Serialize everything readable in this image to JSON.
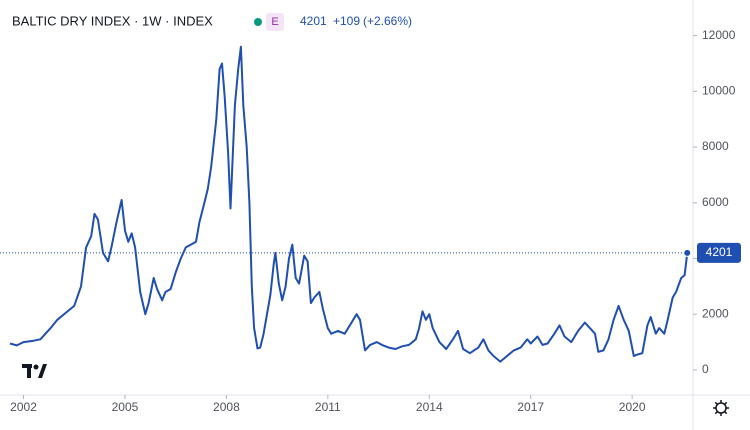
{
  "chart_data": {
    "type": "line",
    "title": "BALTIC DRY INDEX · 1W · INDEX",
    "exchange_badge": "E",
    "last_value": 4201,
    "change": "+109",
    "change_pct": "(+2.66%)",
    "color": "#1f4fb0",
    "x": [
      2001.6,
      2001.8,
      2002.0,
      2002.3,
      2002.5,
      2002.8,
      2003.0,
      2003.3,
      2003.5,
      2003.7,
      2003.85,
      2004.0,
      2004.1,
      2004.2,
      2004.35,
      2004.5,
      2004.6,
      2004.75,
      2004.9,
      2005.0,
      2005.1,
      2005.2,
      2005.3,
      2005.45,
      2005.6,
      2005.7,
      2005.85,
      2005.95,
      2006.1,
      2006.2,
      2006.35,
      2006.5,
      2006.65,
      2006.8,
      2006.95,
      2007.1,
      2007.2,
      2007.35,
      2007.45,
      2007.55,
      2007.7,
      2007.8,
      2007.87,
      2007.95,
      2008.05,
      2008.12,
      2008.25,
      2008.35,
      2008.43,
      2008.5,
      2008.6,
      2008.68,
      2008.75,
      2008.82,
      2008.92,
      2009.0,
      2009.1,
      2009.2,
      2009.3,
      2009.4,
      2009.45,
      2009.55,
      2009.65,
      2009.75,
      2009.85,
      2009.95,
      2010.05,
      2010.15,
      2010.3,
      2010.4,
      2010.5,
      2010.6,
      2010.75,
      2010.85,
      2011.0,
      2011.1,
      2011.3,
      2011.5,
      2011.7,
      2011.85,
      2011.95,
      2012.1,
      2012.25,
      2012.45,
      2012.6,
      2012.8,
      2013.0,
      2013.2,
      2013.4,
      2013.6,
      2013.7,
      2013.8,
      2013.9,
      2014.0,
      2014.1,
      2014.3,
      2014.5,
      2014.7,
      2014.85,
      2015.0,
      2015.2,
      2015.45,
      2015.6,
      2015.75,
      2015.9,
      2016.1,
      2016.3,
      2016.5,
      2016.7,
      2016.9,
      2017.0,
      2017.2,
      2017.35,
      2017.5,
      2017.7,
      2017.85,
      2018.0,
      2018.2,
      2018.4,
      2018.6,
      2018.75,
      2018.9,
      2019.0,
      2019.15,
      2019.3,
      2019.45,
      2019.6,
      2019.75,
      2019.9,
      2020.05,
      2020.15,
      2020.3,
      2020.45,
      2020.55,
      2020.7,
      2020.8,
      2020.95,
      2021.05,
      2021.2,
      2021.3,
      2021.45,
      2021.55,
      2021.63
    ],
    "values": [
      950,
      880,
      1000,
      1050,
      1100,
      1500,
      1800,
      2100,
      2300,
      3000,
      4400,
      4800,
      5600,
      5400,
      4200,
      3900,
      4400,
      5300,
      6100,
      5000,
      4600,
      4900,
      4400,
      2800,
      2000,
      2400,
      3300,
      2900,
      2500,
      2800,
      2900,
      3500,
      4000,
      4400,
      4500,
      4600,
      5300,
      6000,
      6500,
      7300,
      9000,
      10800,
      11000,
      9800,
      7800,
      5800,
      9500,
      10800,
      11600,
      9500,
      8000,
      6000,
      3000,
      1500,
      774,
      800,
      1300,
      2000,
      2700,
      3800,
      4200,
      3100,
      2500,
      3000,
      4000,
      4500,
      3300,
      3100,
      4100,
      3900,
      2400,
      2600,
      2800,
      2200,
      1500,
      1300,
      1400,
      1300,
      1700,
      2000,
      1800,
      700,
      900,
      1000,
      900,
      800,
      750,
      850,
      900,
      1100,
      1500,
      2100,
      1800,
      2000,
      1500,
      1000,
      750,
      1100,
      1400,
      750,
      600,
      800,
      1100,
      700,
      500,
      300,
      500,
      700,
      800,
      1100,
      950,
      1200,
      900,
      950,
      1300,
      1600,
      1200,
      1000,
      1400,
      1700,
      1500,
      1300,
      650,
      700,
      1100,
      1800,
      2300,
      1800,
      1400,
      500,
      550,
      600,
      1600,
      1900,
      1300,
      1500,
      1300,
      1800,
      2600,
      2800,
      3300,
      3400,
      4201
    ],
    "xlim": [
      2001.6,
      2021.77
    ],
    "ylim": [
      -900,
      13100
    ],
    "xticks": [
      2002,
      2005,
      2008,
      2011,
      2014,
      2017,
      2020
    ],
    "yticks": [
      0,
      2000,
      4000,
      6000,
      8000,
      10000,
      12000
    ]
  }
}
